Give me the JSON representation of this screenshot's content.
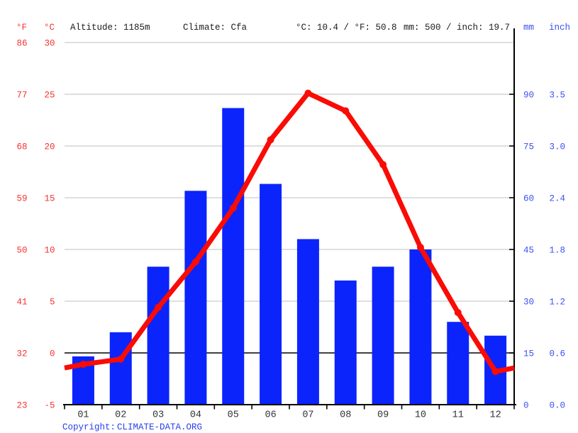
{
  "header": {
    "f_unit": "°F",
    "c_unit": "°C",
    "altitude": "Altitude: 1185m",
    "climate": "Climate: Cfa",
    "temp_summary": "°C: 10.4 / °F: 50.8",
    "precip_summary": "mm: 500 / inch: 19.7",
    "mm_unit": "mm",
    "inch_unit": "inch"
  },
  "footer": {
    "copyright_label": "Copyright:",
    "source_link": "CLIMATE-DATA.ORG"
  },
  "colors": {
    "red_line": "#fa0b05",
    "red_text": "#f43131",
    "bar_blue": "#0b24fb",
    "blue_text": "#3a4ff0",
    "link_blue": "#2a41e8",
    "grid": "#cccccc",
    "axis": "#000000",
    "month_text": "#333333"
  },
  "chart_data": {
    "type": "combo",
    "title": "Climate graph (Altitude: 1185m, Climate: Cfa, mean temp 10.4 °C / 50.8 °F, annual precipitation 500 mm / 19.7 inch)",
    "categories": [
      "01",
      "02",
      "03",
      "04",
      "05",
      "06",
      "07",
      "08",
      "09",
      "10",
      "11",
      "12"
    ],
    "series": [
      {
        "name": "precipitation",
        "type": "bar",
        "unit": "mm",
        "values": [
          14,
          21,
          40,
          62,
          86,
          64,
          48,
          36,
          40,
          45,
          24,
          20
        ]
      },
      {
        "name": "temperature",
        "type": "line",
        "unit": "°C",
        "values": [
          -1.1,
          -0.6,
          4.4,
          8.8,
          14.0,
          20.6,
          25.1,
          23.4,
          18.2,
          10.2,
          3.9,
          -1.8
        ]
      }
    ],
    "axes": {
      "left_f": {
        "unit": "°F",
        "ticks": [
          "86",
          "77",
          "68",
          "59",
          "50",
          "41",
          "32",
          "23"
        ]
      },
      "left_c": {
        "unit": "°C",
        "ticks": [
          30,
          25,
          20,
          15,
          10,
          5,
          0,
          -5
        ],
        "range": [
          -5,
          30
        ]
      },
      "right_mm": {
        "unit": "mm",
        "ticks": [
          90,
          75,
          60,
          45,
          30,
          15,
          0
        ],
        "range": [
          0,
          105
        ]
      },
      "right_inch": {
        "unit": "inch",
        "ticks": [
          "3.5",
          "3.0",
          "2.4",
          "1.8",
          "1.2",
          "0.6",
          "0.0"
        ]
      }
    },
    "grid": true,
    "zero_line_c": 0,
    "legend": "none"
  }
}
